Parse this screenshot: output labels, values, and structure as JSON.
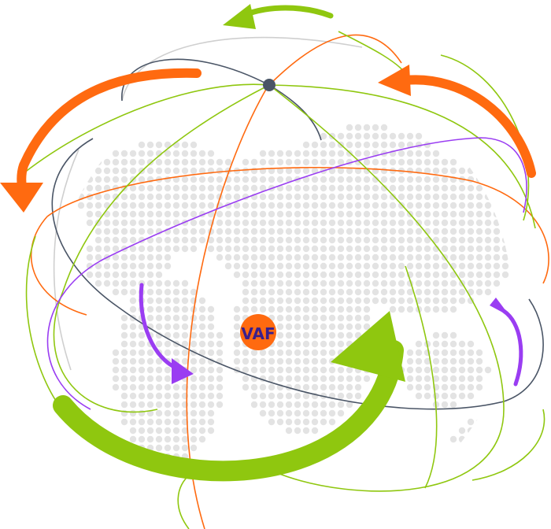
{
  "illustration": {
    "logo_text": "VAF",
    "colors": {
      "orange": "#ff6a10",
      "green": "#8fc70f",
      "purple": "#9a3df2",
      "slate": "#4a5566",
      "light_gray": "#c8c8c8",
      "dots": "#e3e3e3",
      "logo_fill": "#ff6a10",
      "logo_text": "#3a1f8c"
    },
    "icons": [
      "globe-icon",
      "logo-badge",
      "hub-node"
    ]
  }
}
